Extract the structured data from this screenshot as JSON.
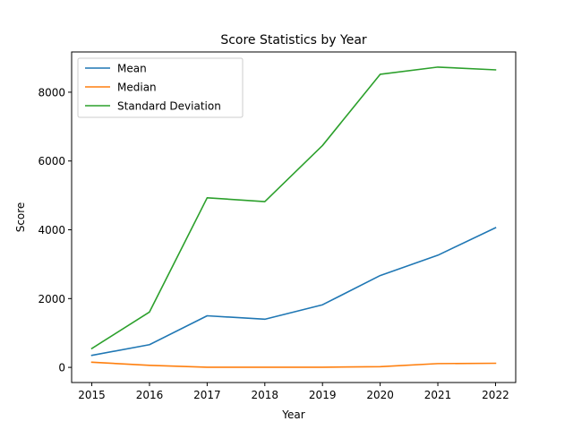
{
  "chart_data": {
    "type": "line",
    "title": "Score Statistics by Year",
    "xlabel": "Year",
    "ylabel": "Score",
    "x": [
      2015,
      2016,
      2017,
      2018,
      2019,
      2020,
      2021,
      2022
    ],
    "x_tick_labels": [
      "2015",
      "2016",
      "2017",
      "2018",
      "2019",
      "2020",
      "2021",
      "2022"
    ],
    "xlim": [
      2014.65,
      2022.35
    ],
    "ylim": [
      -440,
      9170
    ],
    "y_ticks": [
      0,
      2000,
      4000,
      6000,
      8000
    ],
    "y_tick_labels": [
      "0",
      "2000",
      "4000",
      "6000",
      "8000"
    ],
    "grid": false,
    "legend_position": "upper-left",
    "series": [
      {
        "name": "Mean",
        "color": "#1f77b4",
        "values": [
          350,
          660,
          1500,
          1400,
          1820,
          2670,
          3260,
          4060
        ]
      },
      {
        "name": "Median",
        "color": "#ff7f0e",
        "values": [
          150,
          60,
          5,
          5,
          5,
          20,
          110,
          120
        ]
      },
      {
        "name": "Standard Deviation",
        "color": "#2ca02c",
        "values": [
          550,
          1610,
          4930,
          4820,
          6450,
          8520,
          8730,
          8650
        ]
      }
    ]
  }
}
